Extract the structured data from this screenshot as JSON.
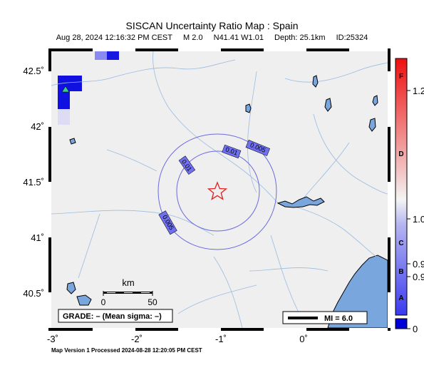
{
  "header": {
    "title": "SISCAN Uncertainty Ratio Map : Spain",
    "datetime": "Aug 28, 2024 12:16:32 PM CEST",
    "magnitude": "M 2.0",
    "location": "N41.41 W1.01",
    "depth": "Depth: 25.1km",
    "id": "ID:25324"
  },
  "map": {
    "lon_ticks": [
      "-3˚",
      "-2˚",
      "-1˚",
      "0˚"
    ],
    "lat_ticks": [
      "42.5˚",
      "42˚",
      "41.5˚",
      "41˚",
      "40.5˚"
    ],
    "contour_labels": [
      "0.005",
      "0.01",
      "0.01",
      "0.005"
    ],
    "epicenter": {
      "lat": 41.41,
      "lon": -1.01
    },
    "scale_bar": {
      "unit": "km",
      "ticks": [
        "0",
        "50"
      ]
    },
    "grade_box": "GRADE: – (Mean sigma: –)",
    "mi_legend": "MI = 6.0",
    "colors": {
      "land": "#efefef",
      "sea": "#7aa6de",
      "contour": "#6a6ae0",
      "epicenter": "#e02020",
      "station": "#3ad08a"
    }
  },
  "colorbar": {
    "grade_letters": [
      "F",
      "D",
      "C",
      "B",
      "A"
    ],
    "value_labels": [
      "1.2",
      "1.0",
      "0.9",
      "0.9",
      "0"
    ]
  },
  "footer": {
    "text": "Map Version 1 Processed 2024-08-28 12:20:05 PM CEST"
  }
}
